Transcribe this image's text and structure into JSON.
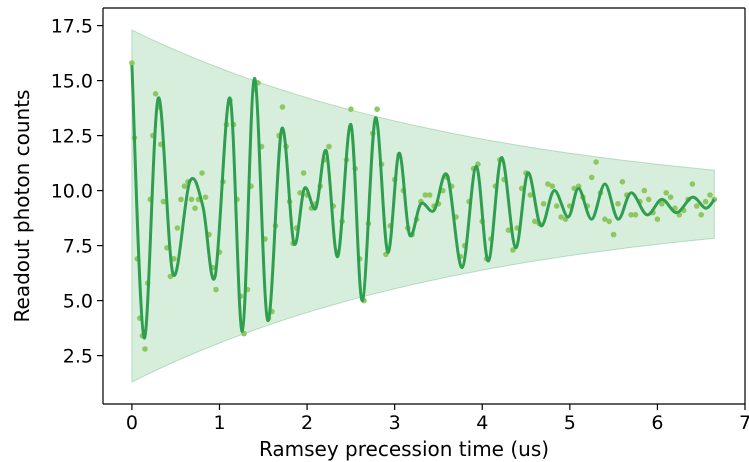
{
  "chart_data": {
    "type": "scatter",
    "title": "",
    "xlabel": "Ramsey precession time (us)",
    "ylabel": "Readout photon counts",
    "xlim": [
      -0.33,
      7.0
    ],
    "ylim": [
      0.3,
      18.3
    ],
    "xticks": [
      0,
      1,
      2,
      3,
      4,
      5,
      6,
      7
    ],
    "yticks": [
      2.5,
      5.0,
      7.5,
      10.0,
      12.5,
      15.0,
      17.5
    ],
    "xtick_labels": [
      "0",
      "1",
      "2",
      "3",
      "4",
      "5",
      "6",
      "7"
    ],
    "ytick_labels": [
      "2.5",
      "5.0",
      "7.5",
      "10.0",
      "12.5",
      "15.0",
      "17.5"
    ],
    "grid": false,
    "legend": null,
    "colors": {
      "scatter": "#8ec75f",
      "fit_line": "#2e9e4f",
      "envelope_fill": "#a9d9b3",
      "envelope_edge": "#7cc48f"
    },
    "model": {
      "description_shown": "damped oscillation fit with exponential envelope band",
      "offset": 9.4,
      "envelope_amplitude_start": 6.3,
      "envelope_decay_time": 4.05,
      "x_range": [
        0,
        6.65
      ]
    },
    "fit_curve": {
      "x": [
        0.0,
        0.14,
        0.3,
        0.47,
        0.66,
        0.81,
        0.95,
        1.12,
        1.26,
        1.4,
        1.55,
        1.71,
        1.85,
        1.97,
        2.1,
        2.22,
        2.35,
        2.5,
        2.63,
        2.78,
        2.92,
        3.05,
        3.17,
        3.3,
        3.45,
        3.6,
        3.77,
        3.93,
        4.07,
        4.22,
        4.38,
        4.52,
        4.67,
        4.82,
        4.98,
        5.1,
        5.25,
        5.4,
        5.55,
        5.7,
        5.88,
        6.05,
        6.22,
        6.4,
        6.55,
        6.65
      ],
      "y": [
        15.7,
        3.3,
        14.2,
        6.2,
        10.4,
        9.3,
        6.1,
        14.2,
        3.6,
        15.1,
        4.1,
        12.8,
        7.6,
        10.1,
        9.2,
        11.8,
        7.0,
        13.0,
        5.0,
        13.3,
        7.2,
        11.7,
        8.0,
        9.4,
        9.1,
        10.7,
        6.5,
        11.1,
        6.8,
        11.5,
        7.4,
        10.8,
        8.4,
        10.0,
        8.8,
        10.1,
        8.7,
        10.3,
        8.7,
        9.9,
        8.9,
        9.6,
        9.0,
        9.7,
        9.2,
        9.6
      ]
    },
    "scatter_points": {
      "x": [
        0.0,
        0.03,
        0.06,
        0.09,
        0.12,
        0.15,
        0.18,
        0.21,
        0.24,
        0.27,
        0.3,
        0.33,
        0.36,
        0.4,
        0.44,
        0.48,
        0.52,
        0.56,
        0.6,
        0.64,
        0.68,
        0.72,
        0.76,
        0.8,
        0.84,
        0.88,
        0.92,
        0.96,
        1.0,
        1.04,
        1.08,
        1.12,
        1.16,
        1.2,
        1.24,
        1.28,
        1.32,
        1.36,
        1.4,
        1.44,
        1.48,
        1.52,
        1.56,
        1.6,
        1.64,
        1.68,
        1.72,
        1.76,
        1.8,
        1.84,
        1.88,
        1.92,
        1.96,
        2.0,
        2.05,
        2.1,
        2.15,
        2.2,
        2.25,
        2.3,
        2.35,
        2.4,
        2.45,
        2.5,
        2.55,
        2.6,
        2.65,
        2.7,
        2.75,
        2.8,
        2.85,
        2.9,
        2.95,
        3.0,
        3.05,
        3.1,
        3.15,
        3.2,
        3.25,
        3.3,
        3.35,
        3.4,
        3.45,
        3.5,
        3.55,
        3.6,
        3.65,
        3.7,
        3.75,
        3.8,
        3.85,
        3.9,
        3.95,
        4.0,
        4.05,
        4.1,
        4.15,
        4.2,
        4.25,
        4.3,
        4.35,
        4.4,
        4.45,
        4.5,
        4.55,
        4.6,
        4.65,
        4.7,
        4.75,
        4.8,
        4.85,
        4.9,
        4.95,
        5.0,
        5.05,
        5.1,
        5.15,
        5.2,
        5.25,
        5.3,
        5.35,
        5.4,
        5.45,
        5.5,
        5.55,
        5.6,
        5.65,
        5.7,
        5.75,
        5.8,
        5.85,
        5.9,
        5.95,
        6.0,
        6.05,
        6.1,
        6.15,
        6.2,
        6.25,
        6.3,
        6.35,
        6.4,
        6.45,
        6.5,
        6.55,
        6.6,
        6.65
      ],
      "y": [
        15.8,
        12.4,
        6.9,
        4.2,
        3.4,
        2.8,
        5.8,
        9.6,
        12.5,
        14.4,
        13.8,
        12.1,
        9.5,
        7.4,
        6.1,
        6.9,
        8.3,
        9.6,
        10.2,
        10.4,
        9.6,
        9.2,
        9.6,
        10.8,
        9.7,
        8.0,
        6.5,
        5.5,
        7.2,
        10.4,
        13.0,
        14.1,
        13.0,
        9.6,
        5.2,
        3.5,
        5.5,
        10.2,
        14.6,
        14.9,
        12.0,
        7.8,
        4.2,
        4.5,
        8.4,
        12.5,
        13.8,
        12.0,
        9.5,
        7.6,
        8.3,
        9.9,
        10.8,
        9.8,
        9.2,
        9.4,
        10.2,
        11.4,
        12.0,
        9.3,
        7.2,
        8.6,
        11.4,
        13.7,
        11.0,
        6.9,
        5.0,
        8.5,
        12.6,
        13.7,
        11.2,
        7.1,
        8.4,
        10.5,
        11.6,
        10.0,
        8.3,
        8.0,
        8.7,
        9.5,
        9.8,
        9.8,
        9.3,
        9.4,
        10.0,
        10.6,
        10.2,
        8.8,
        7.0,
        7.5,
        9.5,
        11.0,
        11.2,
        8.6,
        6.9,
        7.8,
        10.2,
        11.4,
        10.5,
        8.2,
        7.3,
        8.3,
        10.1,
        10.8,
        9.8,
        8.6,
        8.5,
        9.4,
        10.3,
        10.2,
        9.3,
        8.8,
        8.7,
        9.3,
        10.1,
        10.2,
        9.7,
        9.3,
        10.6,
        11.3,
        9.9,
        8.7,
        8.6,
        8.0,
        9.4,
        10.4,
        9.8,
        8.9,
        8.9,
        9.5,
        10.0,
        9.6,
        9.0,
        8.7,
        9.4,
        9.9,
        9.7,
        9.2,
        8.9,
        9.1,
        9.6,
        10.3,
        9.3,
        8.9,
        9.5,
        9.8,
        9.6
      ]
    },
    "envelope": {
      "x_start": 0.0,
      "x_end": 6.65,
      "upper_start": 17.3,
      "lower_start": 1.3,
      "upper_end": 10.8,
      "lower_end": 7.7
    }
  }
}
